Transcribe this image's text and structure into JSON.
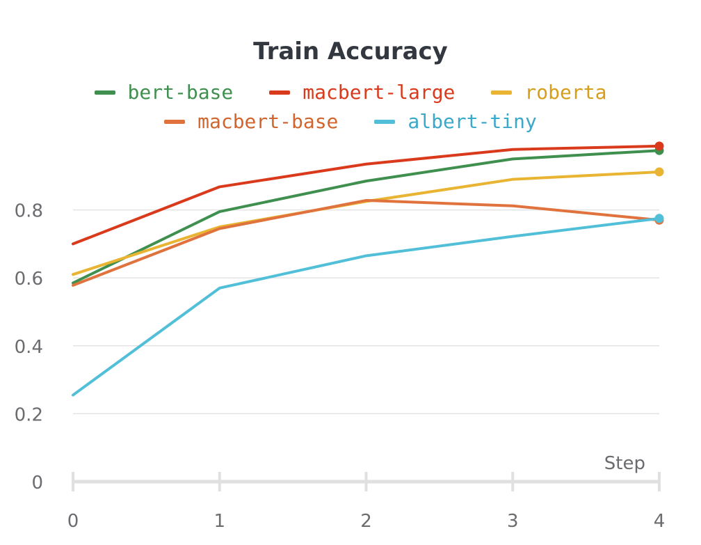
{
  "chart_data": {
    "type": "line",
    "title": "Train Accuracy",
    "xlabel": "Step",
    "ylabel": "",
    "x": [
      0,
      1,
      2,
      3,
      4
    ],
    "xlim": [
      0,
      4
    ],
    "ylim": [
      0,
      1
    ],
    "yticks": [
      0,
      0.2,
      0.4,
      0.6,
      0.8
    ],
    "ytick_labels": [
      "0",
      "0.2",
      "0.4",
      "0.6",
      "0.8"
    ],
    "xtick_labels": [
      "0",
      "1",
      "2",
      "3",
      "4"
    ],
    "grid": true,
    "legend_position": "top",
    "series": [
      {
        "name": "bert-base",
        "color": "#3f8f4f",
        "values": [
          0.585,
          0.795,
          0.885,
          0.95,
          0.975
        ]
      },
      {
        "name": "macbert-large",
        "color": "#d93a1c",
        "values": [
          0.7,
          0.868,
          0.935,
          0.978,
          0.988
        ]
      },
      {
        "name": "roberta",
        "color": "#e8b432",
        "values": [
          0.61,
          0.75,
          0.825,
          0.89,
          0.912
        ]
      },
      {
        "name": "macbert-base",
        "color": "#e0733d",
        "values": [
          0.578,
          0.745,
          0.828,
          0.812,
          0.77
        ]
      },
      {
        "name": "albert-tiny",
        "color": "#52bfd9",
        "values": [
          0.255,
          0.57,
          0.665,
          0.722,
          0.775
        ]
      }
    ],
    "legend_rows": [
      [
        0,
        1,
        2
      ],
      [
        3,
        4
      ]
    ]
  }
}
